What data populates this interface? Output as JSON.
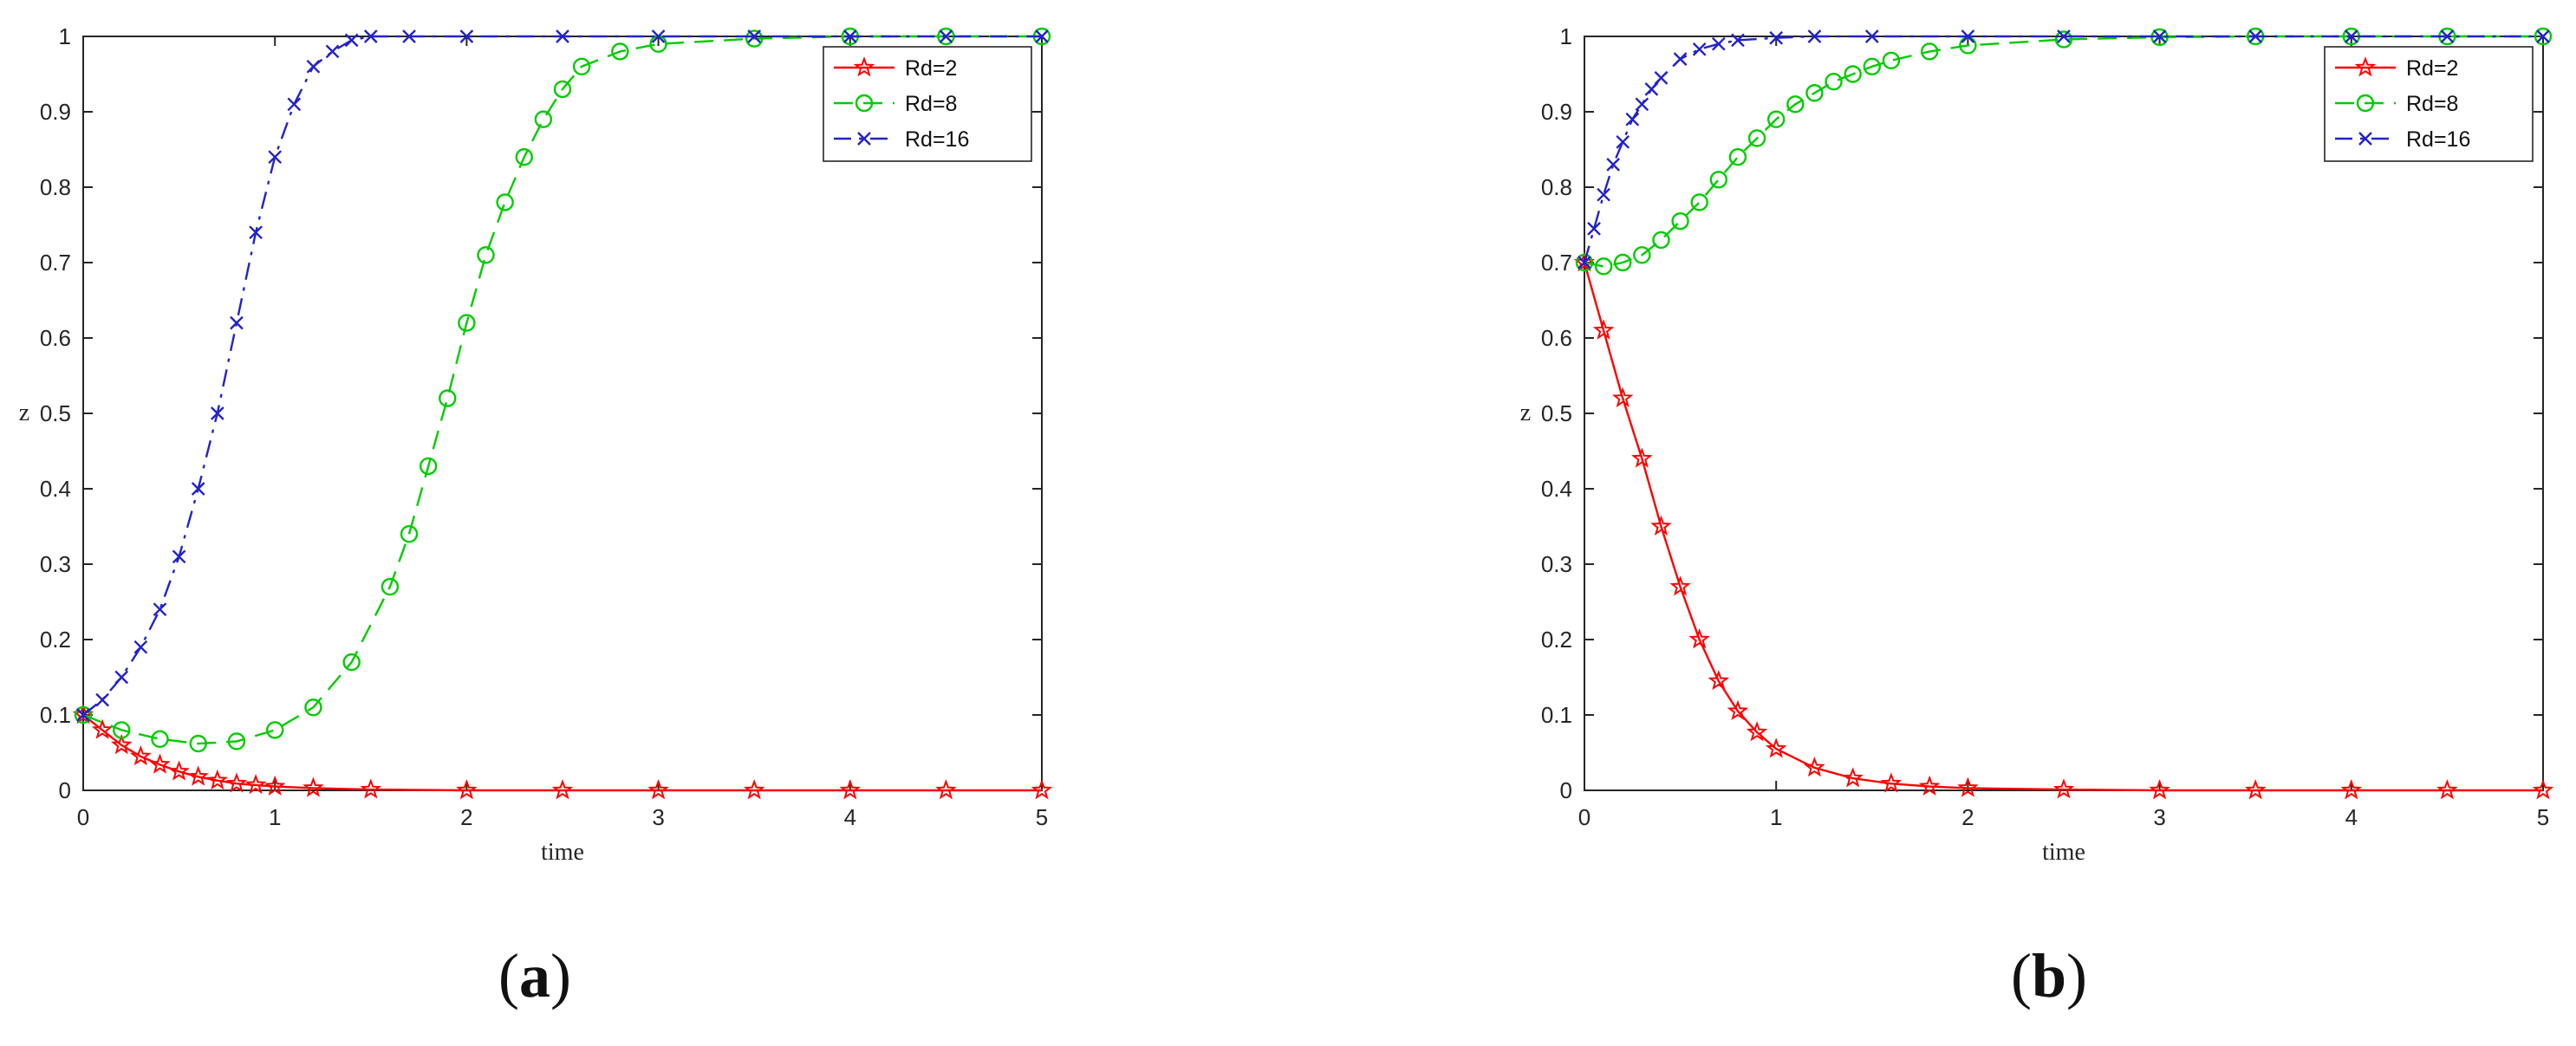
{
  "chart_data": [
    {
      "type": "line",
      "panel_label": "a",
      "xlabel": "time",
      "ylabel": "z",
      "xlim": [
        0,
        5
      ],
      "ylim": [
        0,
        1
      ],
      "xticks": [
        0,
        1,
        2,
        3,
        4,
        5
      ],
      "yticks": [
        0,
        0.1,
        0.2,
        0.3,
        0.4,
        0.5,
        0.6,
        0.7,
        0.8,
        0.9,
        1
      ],
      "legend_position": "top-right",
      "series": [
        {
          "name": "Rd=2",
          "color": "#ff0000",
          "marker": "star",
          "line": "solid",
          "x": [
            0,
            0.1,
            0.2,
            0.3,
            0.4,
            0.5,
            0.6,
            0.7,
            0.8,
            0.9,
            1.0,
            1.2,
            1.5,
            2.0,
            2.5,
            3.0,
            3.5,
            4.0,
            4.5,
            5.0
          ],
          "y": [
            0.1,
            0.08,
            0.06,
            0.045,
            0.034,
            0.025,
            0.018,
            0.013,
            0.009,
            0.007,
            0.005,
            0.003,
            0.001,
            0,
            0,
            0,
            0,
            0,
            0,
            0
          ]
        },
        {
          "name": "Rd=8",
          "color": "#00cc00",
          "marker": "circle",
          "line": "dashed",
          "x": [
            0,
            0.2,
            0.4,
            0.6,
            0.8,
            1.0,
            1.2,
            1.4,
            1.6,
            1.7,
            1.8,
            1.9,
            2.0,
            2.1,
            2.2,
            2.3,
            2.4,
            2.5,
            2.6,
            2.8,
            3.0,
            3.5,
            4.0,
            4.5,
            5.0
          ],
          "y": [
            0.1,
            0.08,
            0.068,
            0.062,
            0.065,
            0.08,
            0.11,
            0.17,
            0.27,
            0.34,
            0.43,
            0.52,
            0.62,
            0.71,
            0.78,
            0.84,
            0.89,
            0.93,
            0.96,
            0.98,
            0.99,
            0.997,
            1.0,
            1.0,
            1.0
          ]
        },
        {
          "name": "Rd=16",
          "color": "#2222cc",
          "marker": "x",
          "line": "dashdot",
          "x": [
            0,
            0.1,
            0.2,
            0.3,
            0.4,
            0.5,
            0.6,
            0.7,
            0.8,
            0.9,
            1.0,
            1.1,
            1.2,
            1.3,
            1.4,
            1.5,
            1.7,
            2.0,
            2.5,
            3.0,
            3.5,
            4.0,
            4.5,
            5.0
          ],
          "y": [
            0.1,
            0.12,
            0.15,
            0.19,
            0.24,
            0.31,
            0.4,
            0.5,
            0.62,
            0.74,
            0.84,
            0.91,
            0.96,
            0.98,
            0.995,
            1.0,
            1.0,
            1.0,
            1.0,
            1.0,
            1.0,
            1.0,
            1.0,
            1.0
          ]
        }
      ]
    },
    {
      "type": "line",
      "panel_label": "b",
      "xlabel": "time",
      "ylabel": "z",
      "xlim": [
        0,
        5
      ],
      "ylim": [
        0,
        1
      ],
      "xticks": [
        0,
        1,
        2,
        3,
        4,
        5
      ],
      "yticks": [
        0,
        0.1,
        0.2,
        0.3,
        0.4,
        0.5,
        0.6,
        0.7,
        0.8,
        0.9,
        1
      ],
      "legend_position": "top-right",
      "series": [
        {
          "name": "Rd=2",
          "color": "#ff0000",
          "marker": "star",
          "line": "solid",
          "x": [
            0,
            0.1,
            0.2,
            0.3,
            0.4,
            0.5,
            0.6,
            0.7,
            0.8,
            0.9,
            1.0,
            1.2,
            1.4,
            1.6,
            1.8,
            2.0,
            2.5,
            3.0,
            3.5,
            4.0,
            4.5,
            5.0
          ],
          "y": [
            0.7,
            0.61,
            0.52,
            0.44,
            0.35,
            0.27,
            0.2,
            0.145,
            0.105,
            0.077,
            0.055,
            0.03,
            0.016,
            0.009,
            0.005,
            0.003,
            0.001,
            0,
            0,
            0,
            0,
            0
          ]
        },
        {
          "name": "Rd=8",
          "color": "#00cc00",
          "marker": "circle",
          "line": "dashed",
          "x": [
            0,
            0.1,
            0.2,
            0.3,
            0.4,
            0.5,
            0.6,
            0.7,
            0.8,
            0.9,
            1.0,
            1.1,
            1.2,
            1.3,
            1.4,
            1.5,
            1.6,
            1.8,
            2.0,
            2.5,
            3.0,
            3.5,
            4.0,
            4.5,
            5.0
          ],
          "y": [
            0.7,
            0.695,
            0.7,
            0.71,
            0.73,
            0.755,
            0.78,
            0.81,
            0.84,
            0.865,
            0.89,
            0.91,
            0.925,
            0.94,
            0.95,
            0.96,
            0.968,
            0.98,
            0.988,
            0.996,
            0.999,
            1.0,
            1.0,
            1.0,
            1.0
          ]
        },
        {
          "name": "Rd=16",
          "color": "#2222cc",
          "marker": "x",
          "line": "dashdot",
          "x": [
            0,
            0.05,
            0.1,
            0.15,
            0.2,
            0.25,
            0.3,
            0.35,
            0.4,
            0.5,
            0.6,
            0.7,
            0.8,
            1.0,
            1.2,
            1.5,
            2.0,
            2.5,
            3.0,
            3.5,
            4.0,
            4.5,
            5.0
          ],
          "y": [
            0.7,
            0.745,
            0.79,
            0.83,
            0.86,
            0.89,
            0.91,
            0.93,
            0.945,
            0.97,
            0.983,
            0.99,
            0.995,
            0.998,
            1.0,
            1.0,
            1.0,
            1.0,
            1.0,
            1.0,
            1.0,
            1.0,
            1.0
          ]
        }
      ]
    }
  ]
}
